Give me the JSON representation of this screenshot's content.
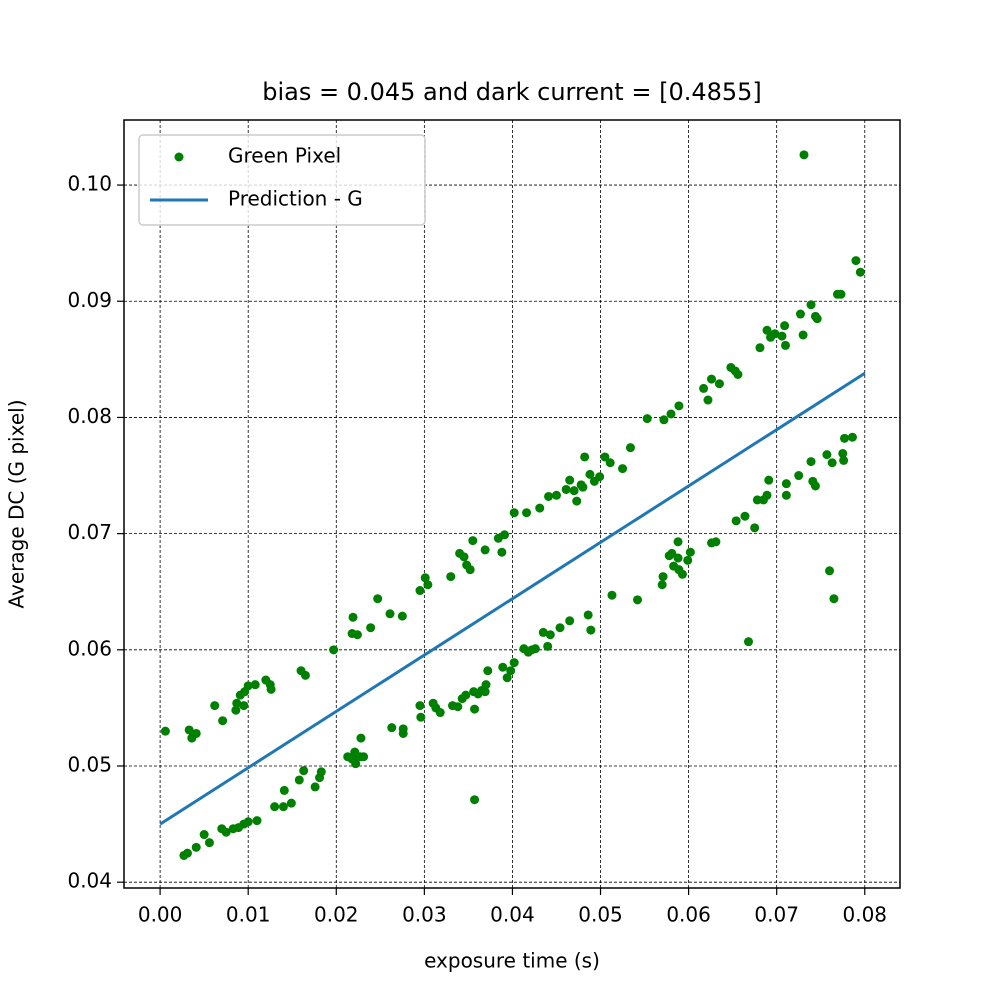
{
  "chart_data": {
    "type": "scatter",
    "title": "bias = 0.045 and dark current = [0.4855]",
    "xlabel": "exposure time (s)",
    "ylabel": "Average DC (G pixel)",
    "xlim": [
      -0.0041,
      0.084
    ],
    "ylim": [
      0.0395,
      0.1056
    ],
    "xticks": [
      {
        "value": 0,
        "label": "0.00"
      },
      0.01,
      0.02,
      0.03,
      0.04,
      0.05,
      0.06,
      0.07,
      0.08
    ],
    "yticks": [
      0.04,
      0.05,
      0.06,
      0.07,
      0.08,
      0.09,
      {
        "value": 0.1,
        "label": "0.10"
      }
    ],
    "grid": true,
    "legend": "upper left",
    "series": [
      {
        "name": "Green Pixel",
        "type": "scatter",
        "color": "green",
        "x": [
          0.0006,
          0.0033,
          0.0036,
          0.0041,
          0.0062,
          0.0071,
          0.0086,
          0.0087,
          0.0091,
          0.0095,
          0.0096,
          0.01,
          0.0108,
          0.012,
          0.0125,
          0.0126,
          0.016,
          0.0165,
          0.0197,
          0.0218,
          0.0219,
          0.0224,
          0.0239,
          0.0247,
          0.0261,
          0.0275,
          0.0295,
          0.0301,
          0.0304,
          0.033,
          0.034,
          0.0345,
          0.0348,
          0.0352,
          0.0355,
          0.0369,
          0.0384,
          0.0388,
          0.0391,
          0.0402,
          0.0416,
          0.0431,
          0.0441,
          0.045,
          0.0461,
          0.0465,
          0.047,
          0.0473,
          0.0478,
          0.048,
          0.0482,
          0.0488,
          0.0493,
          0.0499,
          0.0505,
          0.0511,
          0.0525,
          0.0534,
          0.0553,
          0.0572,
          0.058,
          0.0589,
          0.0617,
          0.0622,
          0.0626,
          0.0635,
          0.0648,
          0.0653,
          0.0656,
          0.0681,
          0.0689,
          0.0693,
          0.0698,
          0.0706,
          0.0709,
          0.071,
          0.0727,
          0.073,
          0.0739,
          0.0744,
          0.0746,
          0.0769,
          0.0773,
          0.079,
          0.0795,
          0.0731,
          0.0027,
          0.0031,
          0.0041,
          0.005,
          0.0056,
          0.007,
          0.0075,
          0.0083,
          0.0089,
          0.0095,
          0.01,
          0.011,
          0.013,
          0.014,
          0.0141,
          0.0149,
          0.0158,
          0.0163,
          0.0176,
          0.0181,
          0.0183,
          0.0213,
          0.0218,
          0.0221,
          0.0222,
          0.0227,
          0.0228,
          0.0231,
          0.0263,
          0.0276,
          0.0276,
          0.0295,
          0.0296,
          0.031,
          0.0313,
          0.0318,
          0.0332,
          0.0338,
          0.0343,
          0.0347,
          0.0356,
          0.0357,
          0.0361,
          0.0365,
          0.037,
          0.0372,
          0.0369,
          0.0389,
          0.0394,
          0.0398,
          0.0402,
          0.0413,
          0.0418,
          0.0422,
          0.0426,
          0.0435,
          0.044,
          0.0443,
          0.0454,
          0.0465,
          0.0486,
          0.0489,
          0.0513,
          0.0542,
          0.057,
          0.0571,
          0.0578,
          0.0581,
          0.0583,
          0.0588,
          0.0588,
          0.0589,
          0.0593,
          0.0599,
          0.0602,
          0.0626,
          0.0631,
          0.0654,
          0.0664,
          0.0675,
          0.0678,
          0.0685,
          0.0689,
          0.0691,
          0.0711,
          0.0711,
          0.0725,
          0.0739,
          0.0741,
          0.0744,
          0.0757,
          0.0763,
          0.0775,
          0.0776,
          0.0777,
          0.0786,
          0.0357,
          0.0668,
          0.076,
          0.0765
        ],
        "values": [
          0.053,
          0.0531,
          0.0524,
          0.0528,
          0.0552,
          0.0539,
          0.0548,
          0.0554,
          0.0561,
          0.0552,
          0.0564,
          0.0569,
          0.057,
          0.0574,
          0.057,
          0.0566,
          0.0582,
          0.0578,
          0.06,
          0.0614,
          0.0628,
          0.0613,
          0.0619,
          0.0644,
          0.0631,
          0.0629,
          0.0651,
          0.0662,
          0.0656,
          0.0663,
          0.0683,
          0.068,
          0.0673,
          0.0669,
          0.0694,
          0.0686,
          0.0696,
          0.0684,
          0.0699,
          0.0718,
          0.0718,
          0.0722,
          0.0732,
          0.0733,
          0.0738,
          0.0746,
          0.0737,
          0.0728,
          0.0742,
          0.074,
          0.0766,
          0.0751,
          0.0745,
          0.0749,
          0.0766,
          0.0761,
          0.0756,
          0.0774,
          0.0799,
          0.0798,
          0.0803,
          0.081,
          0.0825,
          0.0815,
          0.0833,
          0.0829,
          0.0843,
          0.084,
          0.0837,
          0.086,
          0.0875,
          0.0869,
          0.0872,
          0.087,
          0.0879,
          0.0862,
          0.0889,
          0.0871,
          0.0897,
          0.0887,
          0.0885,
          0.0906,
          0.0906,
          0.0935,
          0.0925,
          0.1026,
          0.0423,
          0.0425,
          0.043,
          0.0441,
          0.0434,
          0.0446,
          0.0443,
          0.0446,
          0.0447,
          0.045,
          0.0452,
          0.0453,
          0.0465,
          0.0465,
          0.0479,
          0.0468,
          0.0488,
          0.0496,
          0.0482,
          0.049,
          0.0495,
          0.0508,
          0.0506,
          0.0512,
          0.0502,
          0.0508,
          0.0524,
          0.0508,
          0.0533,
          0.0532,
          0.0528,
          0.0552,
          0.0542,
          0.0554,
          0.055,
          0.0546,
          0.0552,
          0.0551,
          0.0558,
          0.0561,
          0.0564,
          0.0549,
          0.0562,
          0.0565,
          0.057,
          0.0582,
          0.0564,
          0.0585,
          0.0576,
          0.0582,
          0.0589,
          0.0601,
          0.0598,
          0.06,
          0.0601,
          0.0615,
          0.0603,
          0.0613,
          0.0619,
          0.0625,
          0.063,
          0.0617,
          0.0647,
          0.0643,
          0.0656,
          0.0663,
          0.0681,
          0.0683,
          0.0672,
          0.0693,
          0.0679,
          0.0669,
          0.0665,
          0.0677,
          0.0684,
          0.0692,
          0.0693,
          0.0711,
          0.0715,
          0.0705,
          0.0729,
          0.0729,
          0.0733,
          0.0746,
          0.0743,
          0.0733,
          0.075,
          0.0762,
          0.0745,
          0.0741,
          0.0768,
          0.0761,
          0.0769,
          0.0763,
          0.0782,
          0.0783,
          0.0471,
          0.0607,
          0.0668,
          0.0644
        ]
      },
      {
        "name": "Prediction - G",
        "type": "line",
        "color": "#1f77b4",
        "x": [
          0,
          0.08
        ],
        "values": [
          0.045,
          0.0838
        ]
      }
    ]
  }
}
